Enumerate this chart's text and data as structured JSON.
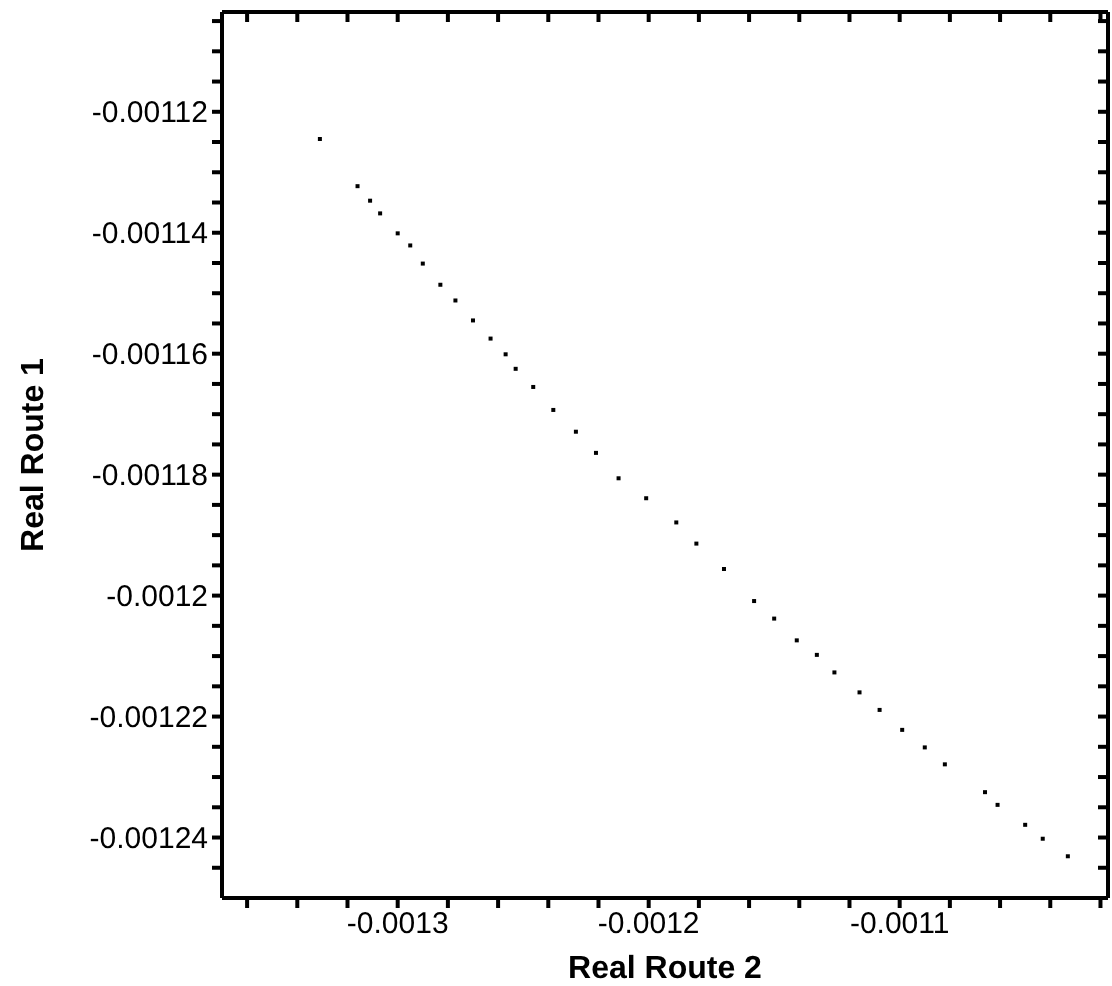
{
  "chart_data": {
    "type": "scatter",
    "xlabel": "Real Route 2",
    "ylabel": "Real Route 1",
    "marker": "square",
    "xlim": [
      -0.00137,
      -0.001017
    ],
    "ylim": [
      -0.00125,
      -0.0011035
    ],
    "xticks": [
      {
        "value": -0.00136,
        "label": null
      },
      {
        "value": -0.00134,
        "label": null
      },
      {
        "value": -0.00132,
        "label": null
      },
      -0.0013,
      {
        "value": -0.00128,
        "label": null
      },
      {
        "value": -0.00126,
        "label": null
      },
      {
        "value": -0.00124,
        "label": null
      },
      {
        "value": -0.00122,
        "label": null
      },
      -0.0012,
      {
        "value": -0.00118,
        "label": null
      },
      {
        "value": -0.00116,
        "label": null
      },
      {
        "value": -0.00114,
        "label": null
      },
      {
        "value": -0.00112,
        "label": null
      },
      -0.0011,
      {
        "value": -0.00108,
        "label": null
      },
      {
        "value": -0.00106,
        "label": null
      },
      {
        "value": -0.00104,
        "label": null
      },
      {
        "value": -0.00102,
        "label": null
      }
    ],
    "yticks": [
      {
        "value": -0.001245,
        "label": null
      },
      -0.00124,
      {
        "value": -0.001235,
        "label": null
      },
      {
        "value": -0.00123,
        "label": null
      },
      {
        "value": -0.001225,
        "label": null
      },
      -0.00122,
      {
        "value": -0.001215,
        "label": null
      },
      {
        "value": -0.00121,
        "label": null
      },
      {
        "value": -0.001205,
        "label": null
      },
      -0.0012,
      {
        "value": -0.001195,
        "label": null
      },
      {
        "value": -0.00119,
        "label": null
      },
      {
        "value": -0.001185,
        "label": null
      },
      -0.00118,
      {
        "value": -0.001175,
        "label": null
      },
      {
        "value": -0.00117,
        "label": null
      },
      {
        "value": -0.001165,
        "label": null
      },
      -0.00116,
      {
        "value": -0.001155,
        "label": null
      },
      {
        "value": -0.00115,
        "label": null
      },
      {
        "value": -0.001145,
        "label": null
      },
      -0.00114,
      {
        "value": -0.001135,
        "label": null
      },
      {
        "value": -0.00113,
        "label": null
      },
      {
        "value": -0.001125,
        "label": null
      },
      -0.00112,
      {
        "value": -0.001115,
        "label": null
      },
      {
        "value": -0.00111,
        "label": null
      },
      {
        "value": -0.001105,
        "label": null
      }
    ],
    "series": [
      {
        "color": "#000000",
        "x": [
          -0.001331,
          -0.001316,
          -0.001311,
          -0.001307,
          -0.0013,
          -0.001295,
          -0.00129,
          -0.001283,
          -0.001277,
          -0.00127,
          -0.001263,
          -0.001257,
          -0.001253,
          -0.001246,
          -0.001238,
          -0.001229,
          -0.001221,
          -0.001212,
          -0.001201,
          -0.001189,
          -0.001181,
          -0.00117,
          -0.001158,
          -0.00115,
          -0.001141,
          -0.001133,
          -0.001126,
          -0.001116,
          -0.001108,
          -0.001099,
          -0.00109,
          -0.001082,
          -0.001066,
          -0.001061,
          -0.00105,
          -0.001043,
          -0.001033
        ],
        "values": [
          -0.0011245,
          -0.0011323,
          -0.0011347,
          -0.0011368,
          -0.0011401,
          -0.0011421,
          -0.0011451,
          -0.0011486,
          -0.0011512,
          -0.0011545,
          -0.0011575,
          -0.0011601,
          -0.0011625,
          -0.0011655,
          -0.0011693,
          -0.0011729,
          -0.0011764,
          -0.0011806,
          -0.0011839,
          -0.0011879,
          -0.0011914,
          -0.0011956,
          -0.0012009,
          -0.0012038,
          -0.0012074,
          -0.0012098,
          -0.0012127,
          -0.001216,
          -0.0012189,
          -0.0012222,
          -0.0012251,
          -0.0012279,
          -0.0012325,
          -0.0012346,
          -0.0012379,
          -0.0012402,
          -0.0012431
        ]
      }
    ]
  }
}
